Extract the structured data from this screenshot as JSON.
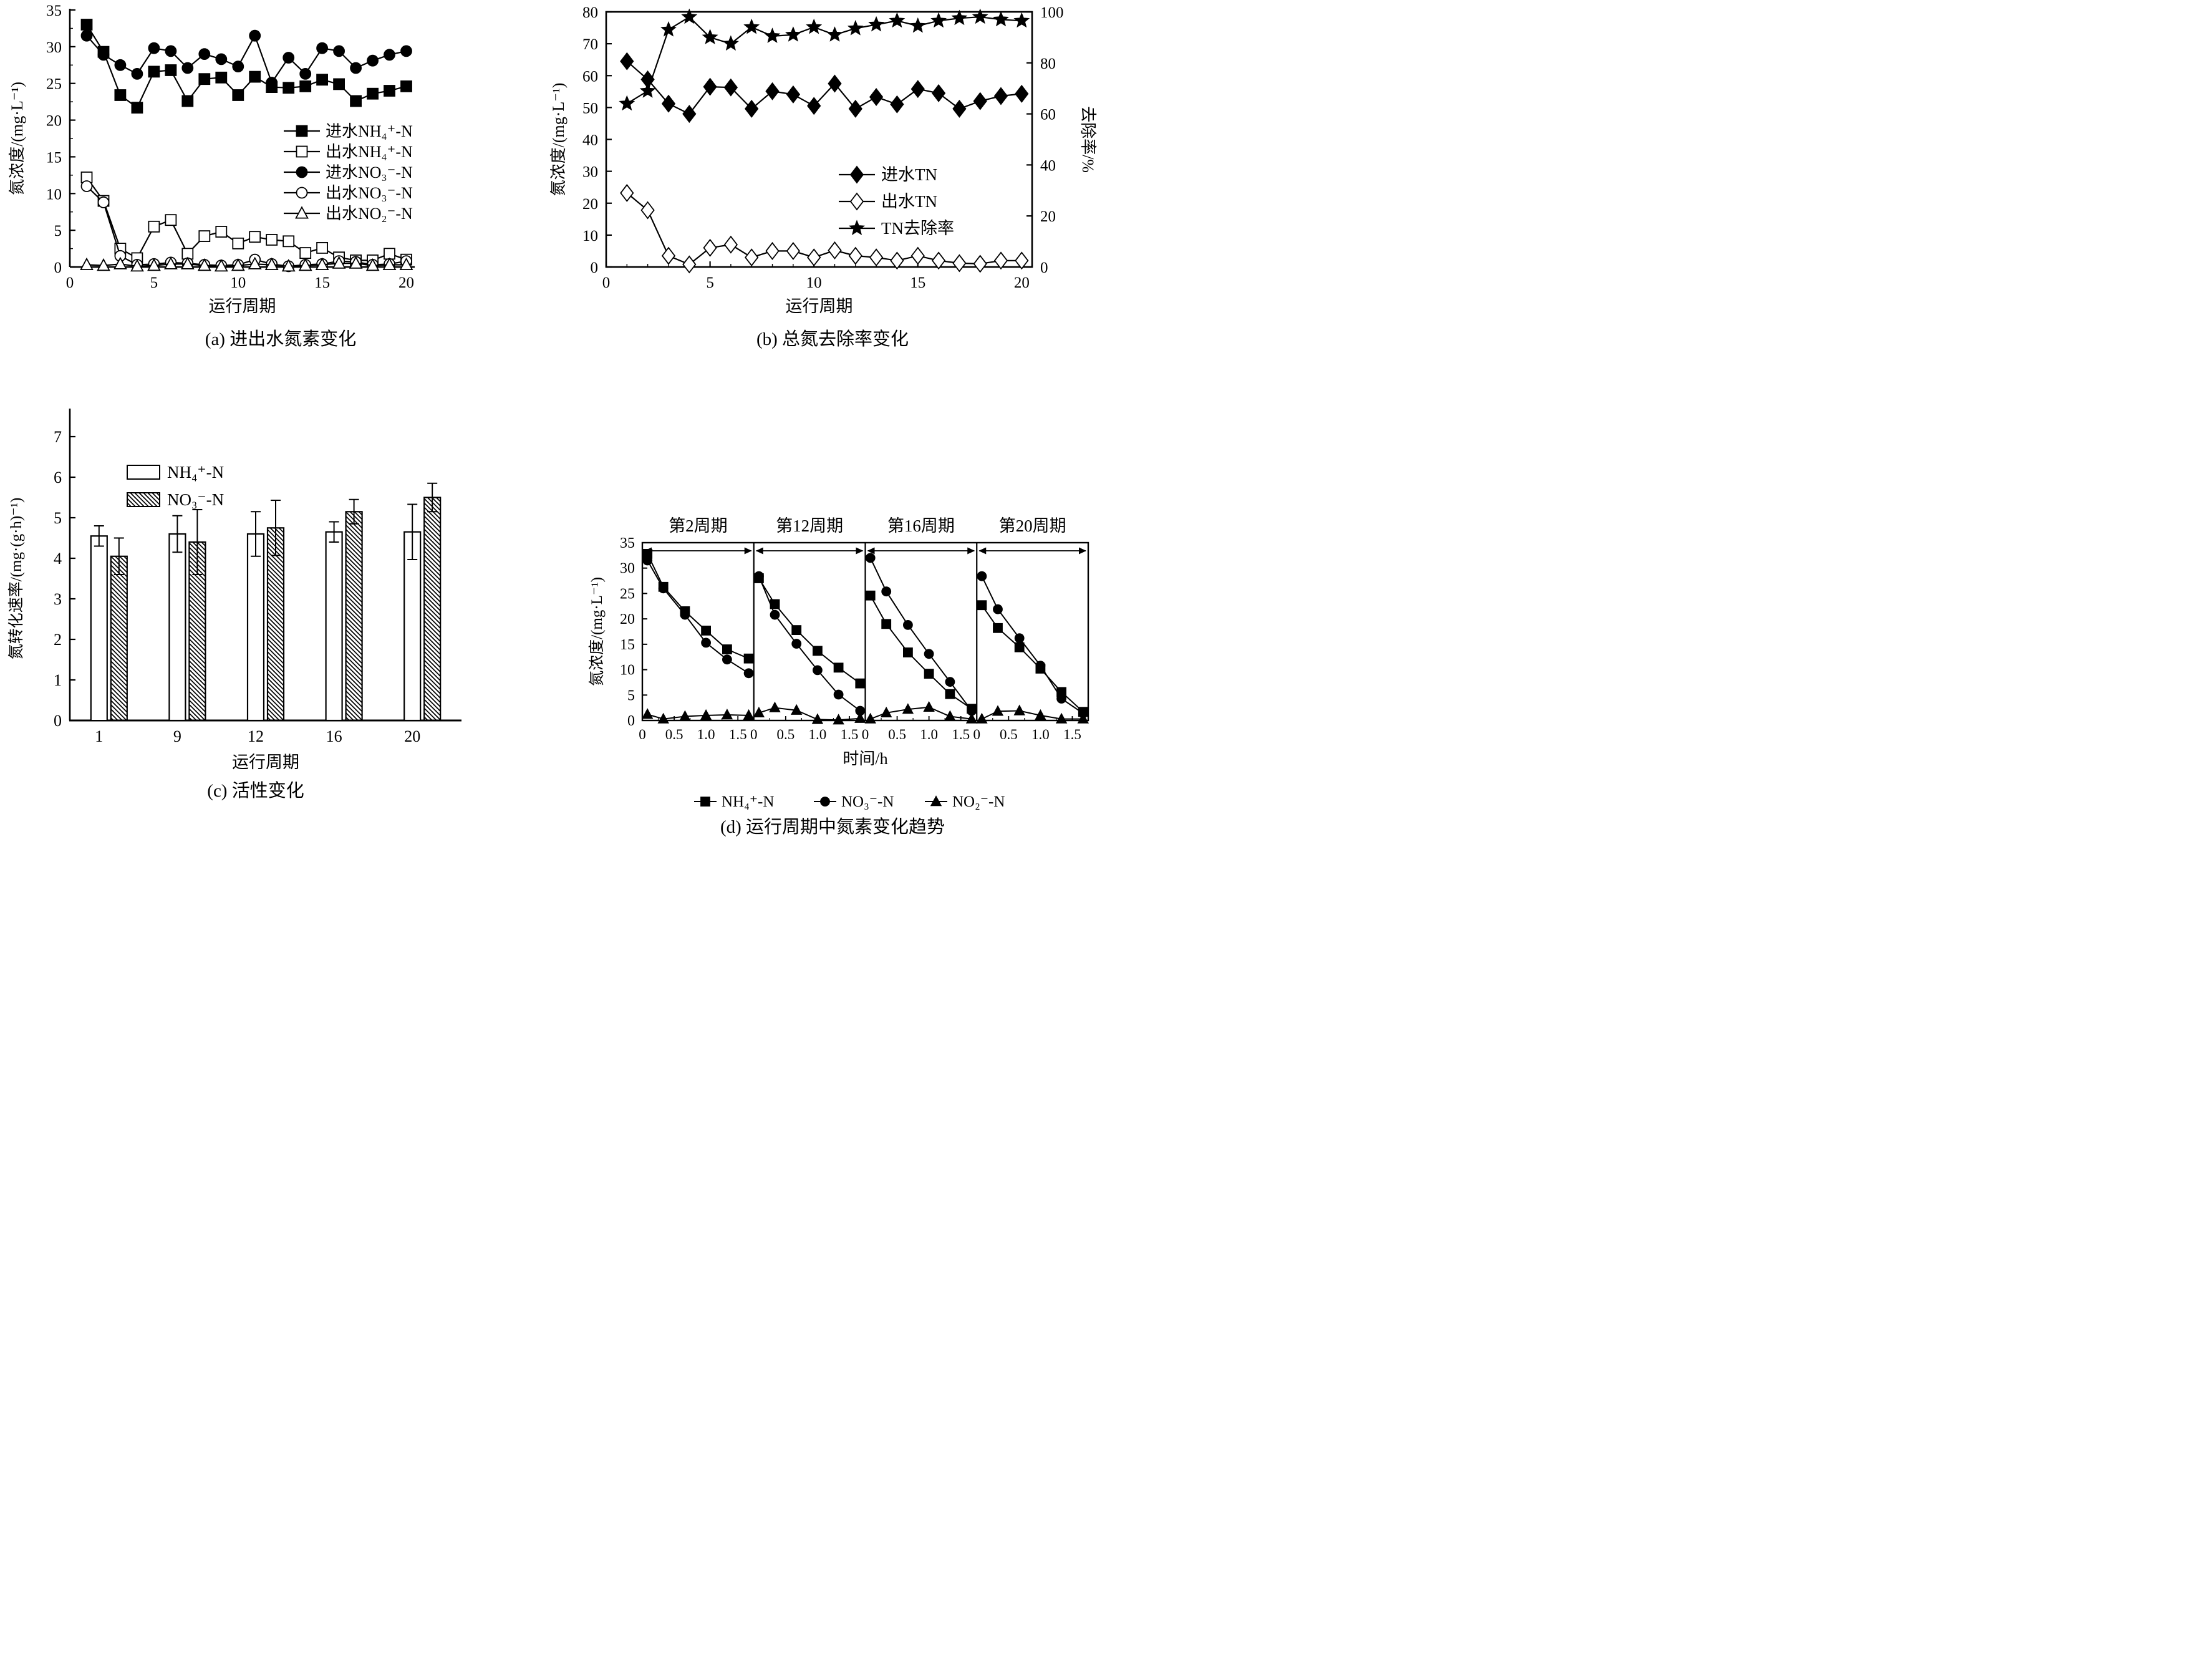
{
  "colors": {
    "ink": "#000000",
    "background": "#ffffff"
  },
  "chart_data": [
    {
      "id": "a",
      "type": "line",
      "caption": "(a) 进出水氮素变化",
      "xlabel": "运行周期",
      "ylabel": "氮浓度/(mg·L⁻¹)",
      "xlim": [
        0,
        20.5
      ],
      "ylim": [
        0,
        35
      ],
      "xticks": [
        0,
        5,
        10,
        15,
        20
      ],
      "yticks": [
        0,
        5,
        10,
        15,
        20,
        25,
        30,
        35
      ],
      "grid": false,
      "legend_position": "center-right-inside",
      "x": [
        1,
        2,
        3,
        4,
        5,
        6,
        7,
        8,
        9,
        10,
        11,
        12,
        13,
        14,
        15,
        16,
        17,
        18,
        19,
        20
      ],
      "series": [
        {
          "name": "进水NH₄⁺-N",
          "marker": "square",
          "filled": true,
          "values": [
            33.0,
            29.3,
            23.4,
            21.7,
            26.6,
            26.8,
            22.6,
            25.6,
            25.8,
            23.4,
            25.9,
            24.5,
            24.4,
            24.6,
            25.5,
            24.9,
            22.6,
            23.6,
            24.0,
            24.6
          ]
        },
        {
          "name": "出水NH₄⁺-N",
          "marker": "square",
          "filled": false,
          "values": [
            12.2,
            9.0,
            2.5,
            1.2,
            5.5,
            6.4,
            1.8,
            4.2,
            4.8,
            3.2,
            4.1,
            3.7,
            3.5,
            1.9,
            2.6,
            1.3,
            0.9,
            0.9,
            1.8,
            1.0
          ]
        },
        {
          "name": "进水NO₃⁻-N",
          "marker": "circle",
          "filled": true,
          "values": [
            31.5,
            28.9,
            27.5,
            26.3,
            29.8,
            29.4,
            27.1,
            29.0,
            28.3,
            27.3,
            31.5,
            25.1,
            28.5,
            26.3,
            29.8,
            29.4,
            27.1,
            28.1,
            28.9,
            29.4
          ]
        },
        {
          "name": "出水NO₃⁻-N",
          "marker": "circle",
          "filled": false,
          "values": [
            11.0,
            8.8,
            1.5,
            0.3,
            0.4,
            0.6,
            0.5,
            0.3,
            0.2,
            0.3,
            1.0,
            0.4,
            0.1,
            0.3,
            0.4,
            0.8,
            0.7,
            0.3,
            0.4,
            0.8
          ]
        },
        {
          "name": "出水NO₂⁻-N",
          "marker": "triangle",
          "filled": false,
          "values": [
            0.3,
            0.2,
            0.4,
            0.1,
            0.2,
            0.4,
            0.4,
            0.2,
            0.1,
            0.2,
            0.4,
            0.3,
            0.1,
            0.2,
            0.3,
            0.5,
            0.5,
            0.2,
            0.3,
            0.3
          ]
        }
      ]
    },
    {
      "id": "b",
      "type": "line-dual-axis",
      "caption": "(b) 总氮去除率变化",
      "xlabel": "运行周期",
      "ylabel": "氮浓度/(mg·L⁻¹)",
      "y2label": "去除率/%",
      "xlim": [
        0,
        20.5
      ],
      "ylim": [
        0,
        80
      ],
      "y2lim": [
        0,
        100
      ],
      "xticks": [
        0,
        5,
        10,
        15,
        20
      ],
      "yticks": [
        0,
        10,
        20,
        30,
        40,
        50,
        60,
        70,
        80
      ],
      "y2ticks": [
        0,
        20,
        40,
        60,
        80,
        100
      ],
      "grid": false,
      "legend_position": "center-right-inside",
      "x": [
        1,
        2,
        3,
        4,
        5,
        6,
        7,
        8,
        9,
        10,
        11,
        12,
        13,
        14,
        15,
        16,
        17,
        18,
        19,
        20
      ],
      "series": [
        {
          "name": "进水TN",
          "marker": "diamond",
          "filled": true,
          "axis": "y",
          "values": [
            64.5,
            58.8,
            51.2,
            48.0,
            56.5,
            56.3,
            49.6,
            55.1,
            54.1,
            50.5,
            57.5,
            49.6,
            53.3,
            51.0,
            55.8,
            54.5,
            49.6,
            52.0,
            53.6,
            54.3
          ]
        },
        {
          "name": "出水TN",
          "marker": "diamond",
          "filled": false,
          "axis": "y",
          "values": [
            23.2,
            17.8,
            3.5,
            0.8,
            6.0,
            7.0,
            3.0,
            5.0,
            5.0,
            3.0,
            5.2,
            3.5,
            3.0,
            2.0,
            3.5,
            2.0,
            1.2,
            1.0,
            2.0,
            2.0
          ]
        },
        {
          "name": "TN去除率",
          "marker": "star",
          "filled": true,
          "axis": "y2",
          "values": [
            64,
            69,
            93,
            98,
            90,
            87.5,
            94,
            90.5,
            91,
            94,
            91,
            93.5,
            95,
            96.5,
            94.5,
            96.5,
            97.5,
            98,
            97,
            96.5
          ]
        }
      ]
    },
    {
      "id": "c",
      "type": "bar",
      "caption": "(c) 活性变化",
      "xlabel": "运行周期",
      "ylabel": "氮转化速率/(mg·(g·h)⁻¹)",
      "ylim": [
        0,
        7
      ],
      "yticks": [
        0,
        1,
        2,
        3,
        4,
        5,
        6,
        7
      ],
      "grid": false,
      "legend_position": "top-left-inside",
      "categories": [
        1,
        9,
        12,
        16,
        20
      ],
      "series": [
        {
          "name": "NH₄⁺-N",
          "fill": "open",
          "values": [
            4.55,
            4.6,
            4.6,
            4.65,
            4.65
          ],
          "errors": [
            0.25,
            0.45,
            0.55,
            0.25,
            0.68
          ]
        },
        {
          "name": "NO₃⁻-N",
          "fill": "hatch",
          "values": [
            4.05,
            4.4,
            4.75,
            5.15,
            5.5
          ],
          "errors": [
            0.45,
            0.8,
            0.68,
            0.3,
            0.35
          ]
        }
      ]
    },
    {
      "id": "d",
      "type": "multi-panel-line",
      "caption": "(d) 运行周期中氮素变化趋势",
      "xlabel": "时间/h",
      "ylabel": "氮浓度/(mg·L⁻¹)",
      "ylim": [
        0,
        35
      ],
      "yticks": [
        0,
        5,
        10,
        15,
        20,
        25,
        30,
        35
      ],
      "panel_xlim": [
        0,
        1.75
      ],
      "panel_xticks": [
        0,
        0.5,
        1.0,
        1.5
      ],
      "panel_xtick_labels": [
        "0",
        "0.5",
        "1.0",
        "1.5"
      ],
      "t": [
        0.08,
        0.33,
        0.67,
        1.0,
        1.33,
        1.67
      ],
      "legend": [
        {
          "name": "NH₄⁺-N",
          "marker": "square"
        },
        {
          "name": "NO₃⁻-N",
          "marker": "circle"
        },
        {
          "name": "NO₂⁻-N",
          "marker": "triangle"
        }
      ],
      "panels": [
        {
          "title": "第2周期",
          "series": [
            [
              32.8,
              26.3,
              21.5,
              17.7,
              14.0,
              12.2
            ],
            [
              31.5,
              26.0,
              20.8,
              15.3,
              12.0,
              9.3
            ],
            [
              1.2,
              0.3,
              0.8,
              1.0,
              1.1,
              1.0
            ]
          ]
        },
        {
          "title": "第12周期",
          "series": [
            [
              28.0,
              22.9,
              17.8,
              13.7,
              10.4,
              7.3
            ],
            [
              28.4,
              20.8,
              15.1,
              9.9,
              5.1,
              1.9
            ],
            [
              1.5,
              2.5,
              2.0,
              0.2,
              0.1,
              0.4
            ]
          ]
        },
        {
          "title": "第16周期",
          "series": [
            [
              24.6,
              19.0,
              13.4,
              9.2,
              5.2,
              2.3
            ],
            [
              32.0,
              25.4,
              18.8,
              13.1,
              7.6,
              1.9
            ],
            [
              0.3,
              1.5,
              2.2,
              2.6,
              0.8,
              0.3
            ]
          ]
        },
        {
          "title": "第20周期",
          "series": [
            [
              22.7,
              18.2,
              14.4,
              10.2,
              5.6,
              1.7
            ],
            [
              28.4,
              21.9,
              16.2,
              10.8,
              4.3,
              1.4
            ],
            [
              0.3,
              1.8,
              1.9,
              1.0,
              0.3,
              0.3
            ]
          ]
        }
      ]
    }
  ]
}
